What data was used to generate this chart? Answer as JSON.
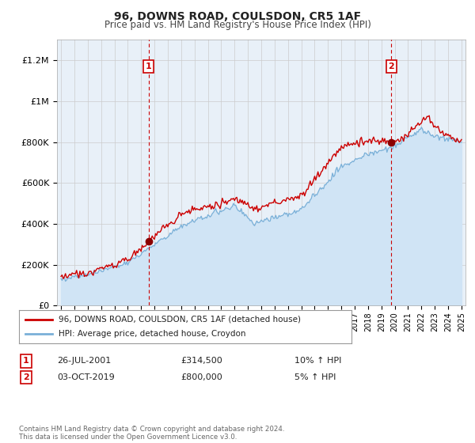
{
  "title": "96, DOWNS ROAD, COULSDON, CR5 1AF",
  "subtitle": "Price paid vs. HM Land Registry's House Price Index (HPI)",
  "ylim": [
    0,
    1300000
  ],
  "yticks": [
    0,
    200000,
    400000,
    600000,
    800000,
    1000000,
    1200000
  ],
  "ytick_labels": [
    "£0",
    "£200K",
    "£400K",
    "£600K",
    "£800K",
    "£1M",
    "£1.2M"
  ],
  "x_start_year": 1995,
  "x_end_year": 2025,
  "sale1_year": 2001.57,
  "sale1_price": 314500,
  "sale2_year": 2019.75,
  "sale2_price": 800000,
  "hpi_line_color": "#7ab0d8",
  "hpi_fill_color": "#d0e4f5",
  "price_color": "#cc0000",
  "legend_entries": [
    "96, DOWNS ROAD, COULSDON, CR5 1AF (detached house)",
    "HPI: Average price, detached house, Croydon"
  ],
  "annotation1_date": "26-JUL-2001",
  "annotation1_price": "£314,500",
  "annotation1_hpi": "10% ↑ HPI",
  "annotation2_date": "03-OCT-2019",
  "annotation2_price": "£800,000",
  "annotation2_hpi": "5% ↑ HPI",
  "footer": "Contains HM Land Registry data © Crown copyright and database right 2024.\nThis data is licensed under the Open Government Licence v3.0.",
  "bg_color": "#ffffff",
  "plot_bg_color": "#e8f0f8"
}
